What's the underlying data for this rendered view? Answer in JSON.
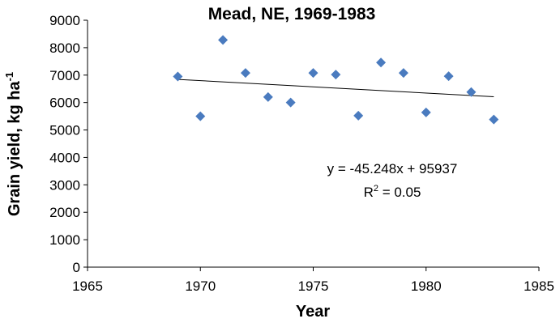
{
  "chart_data": {
    "type": "scatter",
    "title": "Mead, NE, 1969-1983",
    "xlabel": "Year",
    "ylabel": "Grain yield, kg ha",
    "ylabel_superscript": "-1",
    "xlim": [
      1965,
      1985
    ],
    "ylim": [
      0,
      9000
    ],
    "xticks": [
      "1965",
      "1970",
      "1975",
      "1980",
      "1985"
    ],
    "yticks": [
      "0",
      "1000",
      "2000",
      "3000",
      "4000",
      "5000",
      "6000",
      "7000",
      "8000",
      "9000"
    ],
    "grid": false,
    "legend": "none",
    "marker_color": "#4a7bbf",
    "trendline_color": "#000000",
    "x": [
      1969,
      1970,
      1971,
      1972,
      1973,
      1974,
      1975,
      1976,
      1977,
      1978,
      1979,
      1980,
      1981,
      1982,
      1983
    ],
    "y": [
      6950,
      5500,
      8280,
      7080,
      6200,
      6000,
      7080,
      7020,
      5520,
      7460,
      7080,
      5640,
      6960,
      6380,
      5380
    ],
    "trendline": {
      "slope": -45.248,
      "intercept": 95937
    },
    "annotations": {
      "equation": "y = -45.248x + 95937",
      "r2_prefix": "R",
      "r2_sup": "2",
      "r2_suffix": " = 0.05"
    }
  }
}
